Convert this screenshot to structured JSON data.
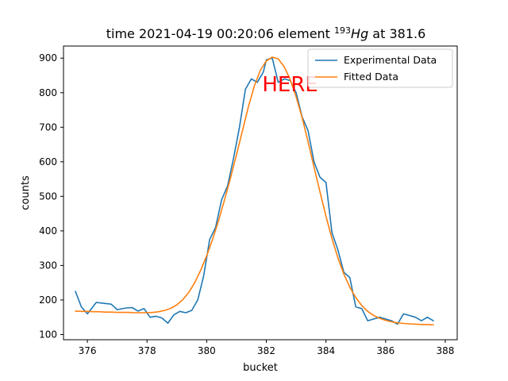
{
  "chart_data": {
    "type": "line",
    "title": {
      "prefix": "time 2021-04-19 00:20:06 element ",
      "superscript": "193",
      "italic": "Hg",
      "suffix": " at 381.6"
    },
    "xlabel": "bucket",
    "ylabel": "counts",
    "xlim": [
      375.2,
      388.4
    ],
    "ylim": [
      85,
      935
    ],
    "xticks": [
      376,
      378,
      380,
      382,
      384,
      386,
      388
    ],
    "yticks": [
      100,
      200,
      300,
      400,
      500,
      600,
      700,
      800,
      900
    ],
    "grid": false,
    "legend_position": "top-right",
    "annotation": {
      "text": "HERE",
      "x": 382.8,
      "y": 825,
      "color": "#ff0000"
    },
    "series": [
      {
        "name": "Experimental Data",
        "color": "#1f77b4",
        "x": [
          375.6,
          375.8,
          376.0,
          376.3,
          376.8,
          377.0,
          377.3,
          377.5,
          377.7,
          377.9,
          378.1,
          378.3,
          378.5,
          378.7,
          378.9,
          379.1,
          379.3,
          379.5,
          379.7,
          379.9,
          380.1,
          380.3,
          380.5,
          380.7,
          380.9,
          381.1,
          381.3,
          381.5,
          381.7,
          381.9,
          382.0,
          382.2,
          382.4,
          382.6,
          382.8,
          383.0,
          383.2,
          383.4,
          383.6,
          383.8,
          384.0,
          384.2,
          384.4,
          384.6,
          384.8,
          385.0,
          385.2,
          385.4,
          385.6,
          385.8,
          386.0,
          386.2,
          386.4,
          386.6,
          386.8,
          387.0,
          387.2,
          387.4,
          387.6
        ],
        "y": [
          225,
          180,
          160,
          193,
          188,
          172,
          177,
          178,
          168,
          175,
          150,
          153,
          148,
          133,
          157,
          167,
          163,
          170,
          200,
          270,
          375,
          410,
          490,
          530,
          610,
          700,
          810,
          840,
          830,
          860,
          895,
          900,
          830,
          840,
          835,
          800,
          730,
          690,
          600,
          555,
          540,
          395,
          345,
          280,
          265,
          180,
          175,
          140,
          145,
          150,
          145,
          140,
          130,
          160,
          155,
          150,
          140,
          150,
          140
        ]
      },
      {
        "name": "Fitted Data",
        "color": "#ff7f0e",
        "x": [
          375.6,
          375.8,
          376.0,
          376.2,
          376.4,
          376.6,
          376.8,
          377.0,
          377.2,
          377.4,
          377.6,
          377.8,
          378.0,
          378.2,
          378.4,
          378.6,
          378.8,
          379.0,
          379.2,
          379.4,
          379.6,
          379.8,
          380.0,
          380.2,
          380.4,
          380.6,
          380.8,
          381.0,
          381.2,
          381.4,
          381.6,
          381.8,
          382.0,
          382.2,
          382.4,
          382.6,
          382.8,
          383.0,
          383.2,
          383.4,
          383.6,
          383.8,
          384.0,
          384.2,
          384.4,
          384.6,
          384.8,
          385.0,
          385.2,
          385.4,
          385.6,
          385.8,
          386.0,
          386.2,
          386.4,
          386.6,
          386.8,
          387.0,
          387.2,
          387.4,
          387.6
        ],
        "y": [
          168,
          167,
          167,
          166,
          166,
          165,
          165,
          164,
          164,
          164,
          163,
          163,
          163,
          164,
          166,
          170,
          176,
          186,
          201,
          222,
          250,
          286,
          328,
          376,
          430,
          490,
          553,
          620,
          690,
          760,
          820,
          865,
          892,
          903,
          898,
          875,
          838,
          788,
          728,
          658,
          585,
          512,
          442,
          378,
          322,
          275,
          237,
          207,
          184,
          167,
          155,
          147,
          141,
          137,
          134,
          132,
          131,
          130,
          129,
          129,
          128
        ]
      }
    ]
  }
}
